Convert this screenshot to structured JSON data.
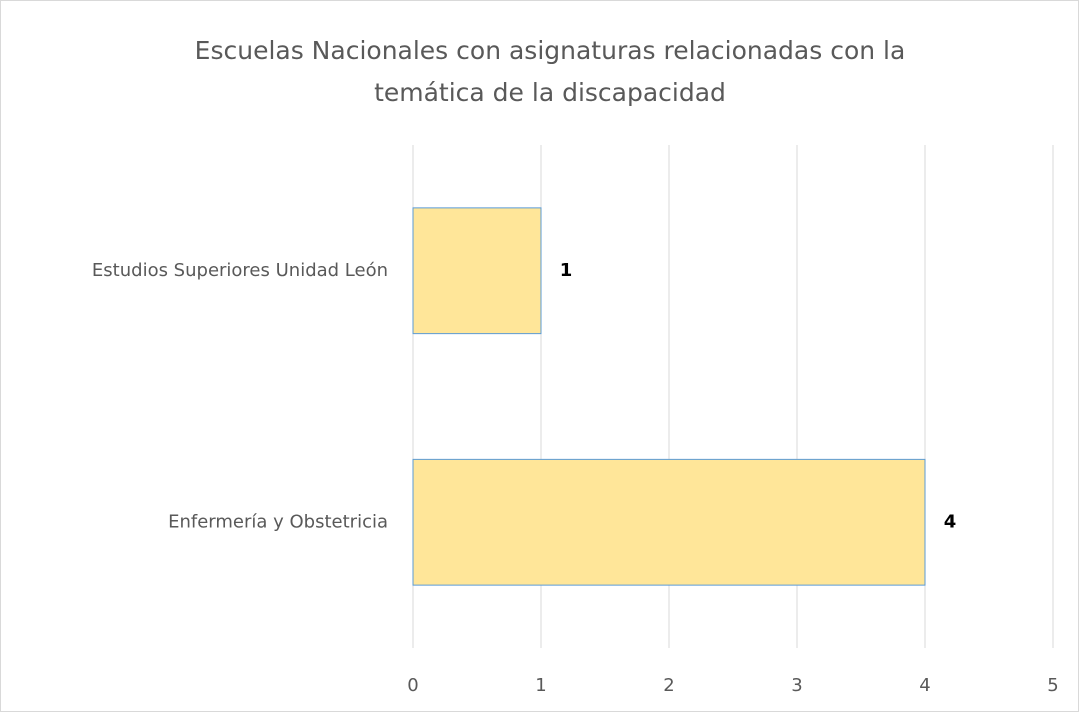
{
  "chart_data": {
    "type": "bar",
    "orientation": "horizontal",
    "title": "Escuelas Nacionales con asignaturas relacionadas con la temática de la discapacidad",
    "categories": [
      "Estudios Superiores Unidad León",
      "Enfermería y Obstetricia"
    ],
    "values": [
      1,
      4
    ],
    "color": "#ffe699",
    "edge_color": "#5b9bd5",
    "xlim": [
      0,
      5
    ],
    "xticks": [
      0,
      1,
      2,
      3,
      4,
      5
    ],
    "grid": true
  }
}
